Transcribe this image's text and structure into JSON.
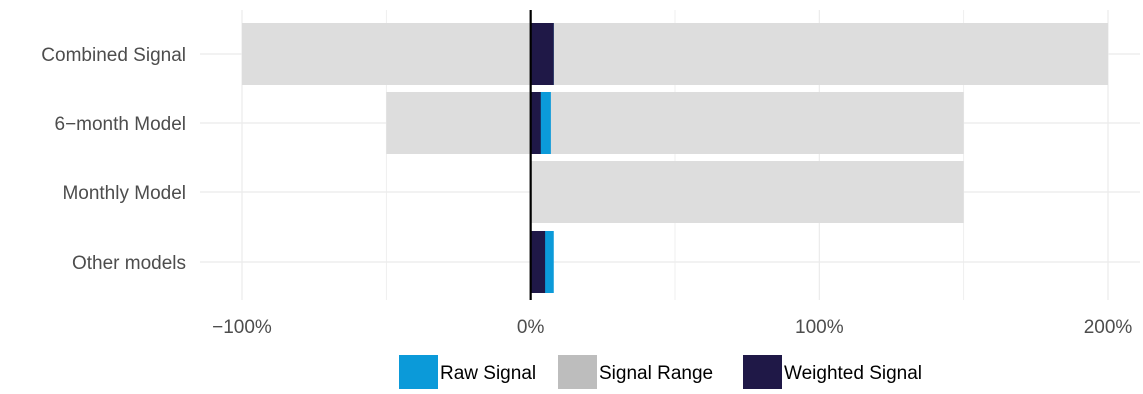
{
  "chart_data": {
    "type": "bar",
    "orientation": "horizontal",
    "categories": [
      "Combined Signal",
      "6−month Model",
      "Monthly Model",
      "Other models"
    ],
    "series": [
      {
        "name": "Signal Range",
        "ranges": [
          [
            -100,
            200
          ],
          [
            -50,
            150
          ],
          [
            0,
            150
          ],
          null
        ]
      },
      {
        "name": "Raw Signal",
        "values": [
          8,
          7,
          0,
          8
        ]
      },
      {
        "name": "Weighted Signal",
        "values": [
          8,
          3.5,
          0,
          5
        ]
      }
    ],
    "xlim": [
      -100,
      200
    ],
    "xticks": [
      -100,
      0,
      100,
      200
    ],
    "xtick_labels": [
      "−100%",
      "0%",
      "100%",
      "200%"
    ],
    "xlabel": "",
    "ylabel": "",
    "grid": true,
    "zero_line": true,
    "legend_position": "bottom",
    "colors": {
      "Raw Signal": "#0b9ad9",
      "Signal Range": "#dddddd",
      "Weighted Signal": "#1f1847",
      "grid": "#ebebeb",
      "text": "#4d4d4d"
    },
    "legend_swatches": {
      "Signal Range": "#bdbdbd"
    }
  }
}
